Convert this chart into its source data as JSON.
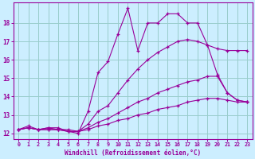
{
  "xlabel": "Windchill (Refroidissement éolien,°C)",
  "background_color": "#cceeff",
  "grid_color": "#99cccc",
  "line_color": "#990099",
  "xlim": [
    -0.5,
    23.5
  ],
  "ylim": [
    11.7,
    19.1
  ],
  "yticks": [
    12,
    13,
    14,
    15,
    16,
    17,
    18
  ],
  "xticks": [
    0,
    1,
    2,
    3,
    4,
    5,
    6,
    7,
    8,
    9,
    10,
    11,
    12,
    13,
    14,
    15,
    16,
    17,
    18,
    19,
    20,
    21,
    22,
    23
  ],
  "lines": [
    {
      "x": [
        0,
        1,
        2,
        3,
        4,
        5,
        6,
        7,
        8,
        9,
        10,
        11,
        12,
        13,
        14,
        15,
        16,
        17,
        18,
        19,
        20,
        21,
        22,
        23
      ],
      "y": [
        12.2,
        12.4,
        12.2,
        12.3,
        12.3,
        12.1,
        12.0,
        13.2,
        15.3,
        15.9,
        17.4,
        18.8,
        16.5,
        18.0,
        18.0,
        18.5,
        18.5,
        18.0,
        18.0,
        16.8,
        15.2,
        14.2,
        13.8,
        13.7
      ]
    },
    {
      "x": [
        0,
        1,
        2,
        3,
        4,
        5,
        6,
        7,
        8,
        9,
        10,
        11,
        12,
        13,
        14,
        15,
        16,
        17,
        18,
        19,
        20,
        21,
        22,
        23
      ],
      "y": [
        12.2,
        12.3,
        12.2,
        12.3,
        12.2,
        12.2,
        12.1,
        12.5,
        13.2,
        13.5,
        14.2,
        14.9,
        15.5,
        16.0,
        16.4,
        16.7,
        17.0,
        17.1,
        17.0,
        16.8,
        16.6,
        16.5,
        16.5,
        16.5
      ]
    },
    {
      "x": [
        0,
        1,
        2,
        3,
        4,
        5,
        6,
        7,
        8,
        9,
        10,
        11,
        12,
        13,
        14,
        15,
        16,
        17,
        18,
        19,
        20,
        21,
        22,
        23
      ],
      "y": [
        12.2,
        12.3,
        12.2,
        12.2,
        12.2,
        12.1,
        12.1,
        12.3,
        12.6,
        12.8,
        13.1,
        13.4,
        13.7,
        13.9,
        14.2,
        14.4,
        14.6,
        14.8,
        14.9,
        15.1,
        15.1,
        14.2,
        13.8,
        13.7
      ]
    },
    {
      "x": [
        0,
        1,
        2,
        3,
        4,
        5,
        6,
        7,
        8,
        9,
        10,
        11,
        12,
        13,
        14,
        15,
        16,
        17,
        18,
        19,
        20,
        21,
        22,
        23
      ],
      "y": [
        12.2,
        12.3,
        12.2,
        12.2,
        12.2,
        12.1,
        12.1,
        12.2,
        12.4,
        12.5,
        12.7,
        12.8,
        13.0,
        13.1,
        13.3,
        13.4,
        13.5,
        13.7,
        13.8,
        13.9,
        13.9,
        13.8,
        13.7,
        13.7
      ]
    }
  ]
}
